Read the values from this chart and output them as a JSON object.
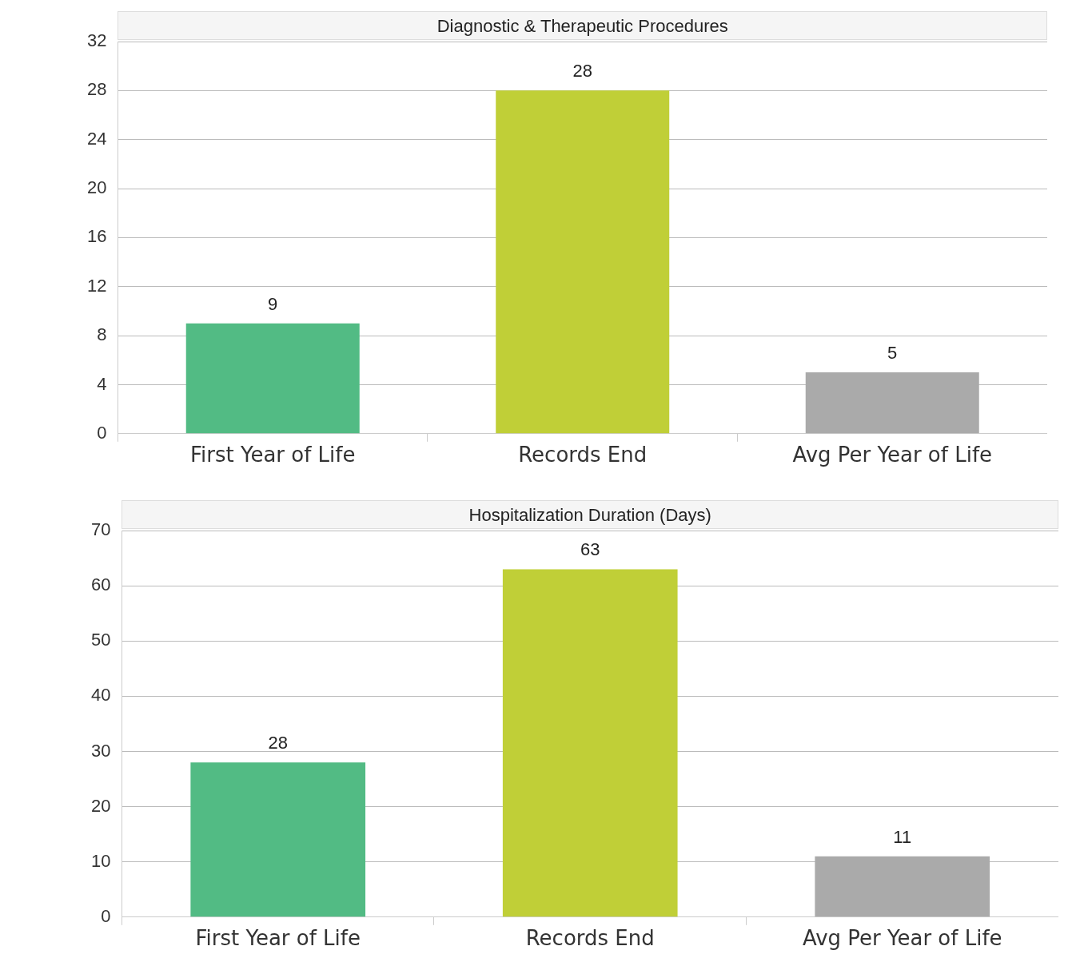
{
  "chart_data": [
    {
      "type": "bar",
      "title": "Diagnostic & Therapeutic Procedures",
      "categories": [
        "First Year of Life",
        "Records End",
        "Avg Per Year of Life"
      ],
      "values": [
        9,
        28,
        5
      ],
      "colors": [
        "#52bb84",
        "#c0cf37",
        "#aaaaaa"
      ],
      "ylim": [
        0,
        32
      ],
      "yticks": [
        0,
        4,
        8,
        12,
        16,
        20,
        24,
        28,
        32
      ],
      "grid": "y",
      "data_labels": true,
      "legend": false
    },
    {
      "type": "bar",
      "title": "Hospitalization Duration (Days)",
      "categories": [
        "First Year of Life",
        "Records End",
        "Avg Per Year of Life"
      ],
      "values": [
        28,
        63,
        11
      ],
      "colors": [
        "#52bb84",
        "#c0cf37",
        "#aaaaaa"
      ],
      "ylim": [
        0,
        70
      ],
      "yticks": [
        0,
        10,
        20,
        30,
        40,
        50,
        60,
        70
      ],
      "grid": "y",
      "data_labels": true,
      "legend": false
    }
  ]
}
